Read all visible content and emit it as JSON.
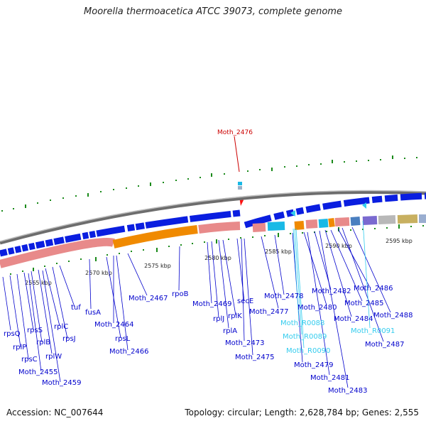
{
  "title": "Moorella thermoacetica ATCC 39073, complete genome",
  "footer": {
    "accession": "Accession: NC_007644",
    "summary": "Topology: circular; Length: 2,628,784 bp; Genes: 2,555"
  },
  "colors": {
    "gene_label": "#0000cc",
    "rna_label": "#33ccee",
    "highlight": "#cc0000",
    "strand_arrows": "#0a1ee0",
    "orange": "#f08a00",
    "pink": "#e88a8a",
    "cyan": "#19b9e6"
  },
  "highlight_gene": "Moth_2476",
  "scale_labels": [
    "2565 kbp",
    "2570 kbp",
    "2575 kbp",
    "2580 kbp",
    "2585 kbp",
    "2590 kbp",
    "2595 kbp"
  ],
  "gene_labels": [
    "rpsQ",
    "rplP",
    "rpsC",
    "rpsS",
    "rplB",
    "rplW",
    "Moth_2455",
    "rplC",
    "rpsJ",
    "tuf",
    "Moth_2459",
    "fusA",
    "rpsL",
    "Moth_2464",
    "Moth_2466",
    "Moth_2467",
    "rpoB",
    "Moth_2469",
    "rplJ",
    "rplA",
    "rplK",
    "secE",
    "Moth_2473",
    "Moth_2475",
    "Moth_2477",
    "Moth_2478",
    "Moth_2479",
    "Moth_2480",
    "Moth_2481",
    "Moth_2482",
    "Moth_2483",
    "Moth_2484",
    "Moth_2485",
    "Moth_2486",
    "Moth_2487",
    "Moth_2488"
  ],
  "rna_labels": [
    "Moth_R0088",
    "Moth_R0089",
    "Moth_R0090",
    "Moth_R0091"
  ]
}
